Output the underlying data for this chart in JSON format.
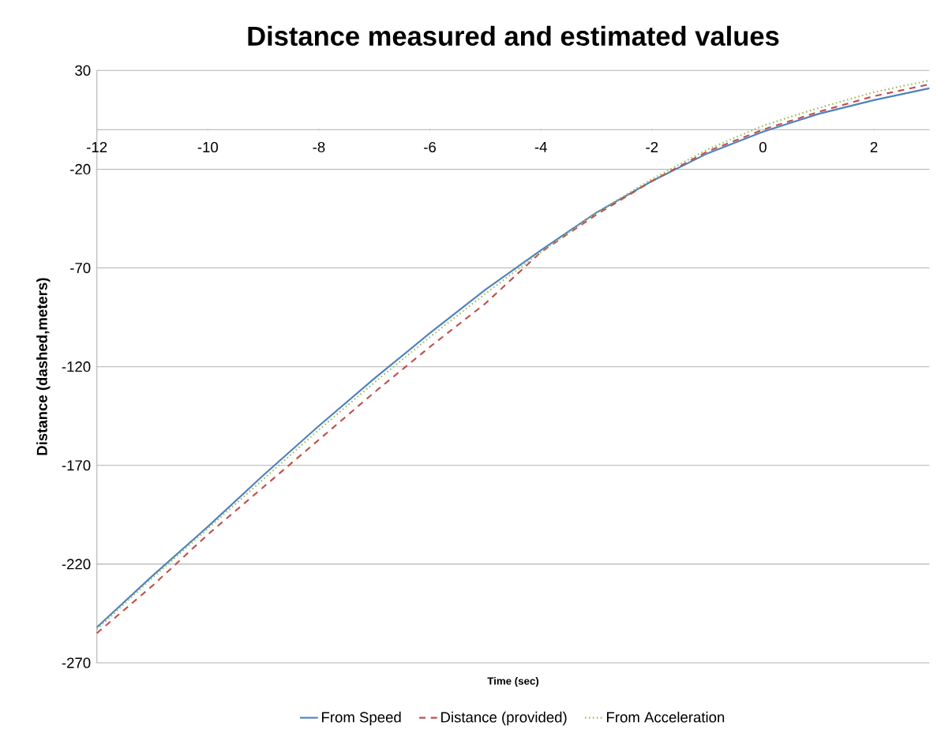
{
  "chart_data": {
    "type": "line",
    "title": "Distance measured and estimated values",
    "xlabel": "Time (sec)",
    "ylabel": "Distance (dashed,meters)",
    "x": [
      -12,
      -11,
      -10,
      -9,
      -8,
      -7,
      -6,
      -5,
      -4,
      -3,
      -2,
      -1,
      0,
      1,
      2,
      3
    ],
    "xlim": [
      -12,
      3
    ],
    "xticks": [
      -12,
      -10,
      -8,
      -6,
      -4,
      -2,
      0,
      2
    ],
    "ylim": [
      -270,
      30
    ],
    "yticks": [
      -270,
      -220,
      -170,
      -120,
      -70,
      -20,
      30
    ],
    "grid": "y",
    "legend": "bottom",
    "marker": "none",
    "series": [
      {
        "name": "From Speed",
        "color": "#4f81bd",
        "line_style": "solid",
        "values": [
          -252,
          -226,
          -201,
          -175,
          -150,
          -126,
          -103,
          -81,
          -61,
          -42,
          -26,
          -12,
          -1,
          8,
          15,
          21
        ]
      },
      {
        "name": "Distance (provided)",
        "color": "#c0504d",
        "line_style": "dashed",
        "values": [
          -255,
          -231,
          -205,
          -181,
          -157,
          -133,
          -110,
          -88,
          -62,
          -43,
          -26,
          -11,
          0,
          9,
          17,
          23
        ]
      },
      {
        "name": "From Acceleration",
        "color": "#9bbb59",
        "line_style": "dotted",
        "values": [
          -253,
          -227,
          -202,
          -177,
          -152,
          -128,
          -105,
          -83,
          -62,
          -42,
          -25,
          -10,
          2,
          11,
          19,
          25
        ]
      }
    ]
  }
}
